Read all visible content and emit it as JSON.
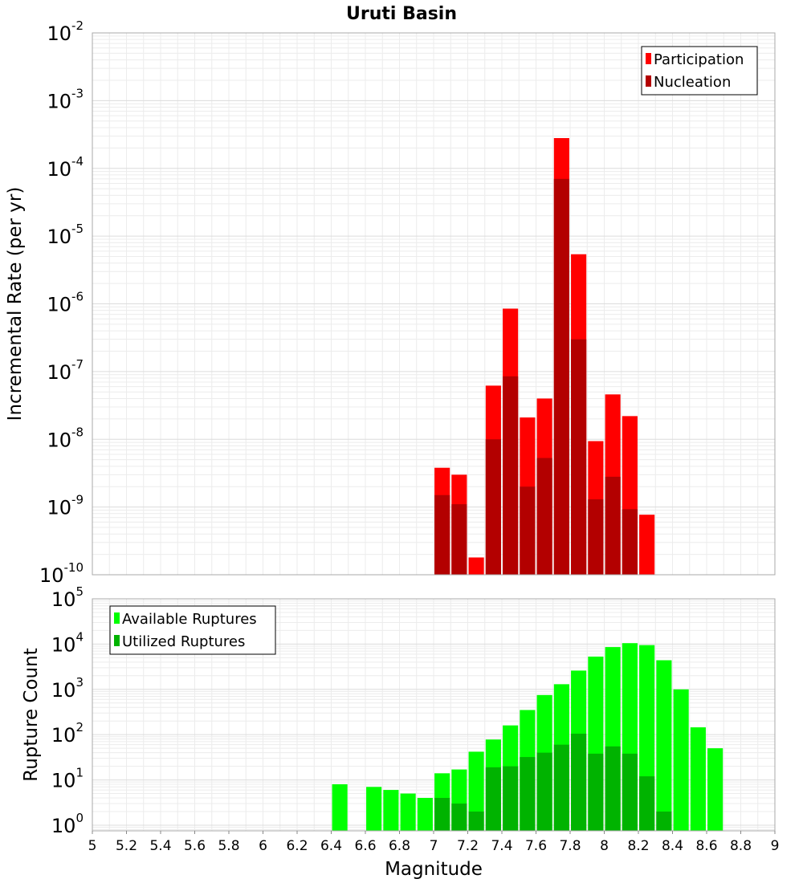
{
  "chart_data": [
    {
      "type": "bar",
      "title": "Uruti Basin",
      "ylabel": "Incremental Rate (per yr)",
      "yscale": "log",
      "ylim": [
        1e-10,
        0.01
      ],
      "xlim": [
        5,
        9
      ],
      "legend": {
        "position": "top-right",
        "entries": [
          {
            "name": "Participation",
            "color": "#ff0000"
          },
          {
            "name": "Nucleation",
            "color": "#b30000"
          }
        ]
      },
      "y_ticks": [
        {
          "base": "10",
          "exp": "-10",
          "value": 1e-10
        },
        {
          "base": "10",
          "exp": "-9",
          "value": 1e-09
        },
        {
          "base": "10",
          "exp": "-8",
          "value": 1e-08
        },
        {
          "base": "10",
          "exp": "-7",
          "value": 1e-07
        },
        {
          "base": "10",
          "exp": "-6",
          "value": 1e-06
        },
        {
          "base": "10",
          "exp": "-5",
          "value": 1e-05
        },
        {
          "base": "10",
          "exp": "-4",
          "value": 0.0001
        },
        {
          "base": "10",
          "exp": "-3",
          "value": 0.001
        },
        {
          "base": "10",
          "exp": "-2",
          "value": 0.01
        }
      ],
      "x": [
        7.05,
        7.15,
        7.25,
        7.35,
        7.45,
        7.55,
        7.65,
        7.75,
        7.85,
        7.95,
        8.05,
        8.15,
        8.25
      ],
      "series": [
        {
          "name": "Participation",
          "color": "#ff0000",
          "values": [
            3.8e-09,
            3e-09,
            1.8e-10,
            6.2e-08,
            8.5e-07,
            2.1e-08,
            4e-08,
            0.00028,
            5.4e-06,
            9.4e-09,
            4.6e-08,
            2.2e-08,
            7.7e-10
          ]
        },
        {
          "name": "Nucleation",
          "color": "#b30000",
          "values": [
            1.5e-09,
            1.1e-09,
            null,
            1e-08,
            8.5e-08,
            2e-09,
            5.3e-09,
            7e-05,
            3e-07,
            1.3e-09,
            2.8e-09,
            9.3e-10,
            null
          ]
        }
      ]
    },
    {
      "type": "bar",
      "title": "",
      "ylabel": "Rupture Count",
      "xlabel": "Magnitude",
      "yscale": "log",
      "ylim": [
        0.75,
        100000.0
      ],
      "xlim": [
        5,
        9
      ],
      "legend": {
        "position": "top-left",
        "entries": [
          {
            "name": "Available Ruptures",
            "color": "#00ff00"
          },
          {
            "name": "Utilized Ruptures",
            "color": "#00b300"
          }
        ]
      },
      "y_ticks": [
        {
          "base": "10",
          "exp": "0",
          "value": 1
        },
        {
          "base": "10",
          "exp": "1",
          "value": 10
        },
        {
          "base": "10",
          "exp": "2",
          "value": 100
        },
        {
          "base": "10",
          "exp": "3",
          "value": 1000
        },
        {
          "base": "10",
          "exp": "4",
          "value": 10000
        },
        {
          "base": "10",
          "exp": "5",
          "value": 100000
        }
      ],
      "x_ticks": [
        "5",
        "5.2",
        "5.4",
        "5.6",
        "5.8",
        "6",
        "6.2",
        "6.4",
        "6.6",
        "6.8",
        "7",
        "7.2",
        "7.4",
        "7.6",
        "7.8",
        "8",
        "8.2",
        "8.4",
        "8.6",
        "8.8",
        "9"
      ],
      "x": [
        6.45,
        6.65,
        6.75,
        6.85,
        6.95,
        7.05,
        7.15,
        7.25,
        7.35,
        7.45,
        7.55,
        7.65,
        7.75,
        7.85,
        7.95,
        8.05,
        8.15,
        8.25,
        8.35,
        8.45,
        8.55,
        8.65
      ],
      "series": [
        {
          "name": "Available Ruptures",
          "color": "#00ff00",
          "values": [
            8,
            7,
            6,
            5,
            4,
            14,
            17,
            42,
            78,
            160,
            350,
            750,
            1300,
            2600,
            5300,
            8600,
            10500,
            9500,
            4400,
            1000,
            145,
            50
          ]
        },
        {
          "name": "Utilized Ruptures",
          "color": "#00b300",
          "values": [
            null,
            null,
            null,
            null,
            null,
            4,
            3,
            2,
            19,
            20,
            32,
            40,
            60,
            105,
            38,
            55,
            38,
            12,
            2,
            null,
            null,
            null
          ]
        }
      ]
    }
  ]
}
